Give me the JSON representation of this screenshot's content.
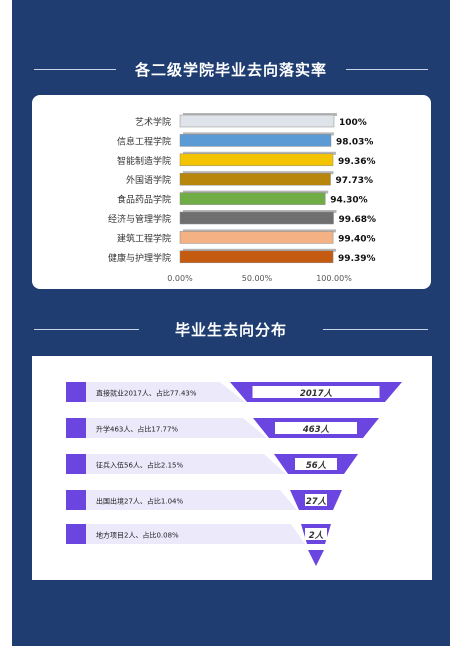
{
  "sections": {
    "rate_title": "各二级学院毕业去向落实率",
    "dest_title": "毕业生去向分布"
  },
  "colors": {
    "background": "#1f3d70",
    "card": "#ffffff",
    "funnel": "#6a45e0",
    "funnel_label_bg": "#ece9fb"
  },
  "chart_data": [
    {
      "type": "bar",
      "orientation": "horizontal",
      "categories": [
        "艺术学院",
        "信息工程学院",
        "智能制造学院",
        "外国语学院",
        "食品药品学院",
        "经济与管理学院",
        "建筑工程学院",
        "健康与护理学院"
      ],
      "values": [
        100,
        98.03,
        99.36,
        97.73,
        94.3,
        99.68,
        99.4,
        99.39
      ],
      "value_labels": [
        "100%",
        "98.03%",
        "99.36%",
        "97.73%",
        "94.30%",
        "99.68%",
        "99.40%",
        "99.39%"
      ],
      "colors": [
        "#dfe3ea",
        "#5b9bd5",
        "#f5c400",
        "#b8860b",
        "#70ad47",
        "#6f6f6f",
        "#f4b183",
        "#c55a11"
      ],
      "xlim": [
        0,
        100
      ],
      "xticks": [
        "0.00%",
        "50.00%",
        "100.00%"
      ]
    },
    {
      "type": "funnel",
      "categories": [
        "直接就业2017人、占比77.43%",
        "升学463人、占比17.77%",
        "征兵入伍56人、占比2.15%",
        "出国出境27人、占比1.04%",
        "地方项目2人、占比0.08%"
      ],
      "value_labels": [
        "2017人",
        "463人",
        "56人",
        "27人",
        "2人"
      ],
      "values": [
        2017,
        463,
        56,
        27,
        2
      ]
    }
  ]
}
